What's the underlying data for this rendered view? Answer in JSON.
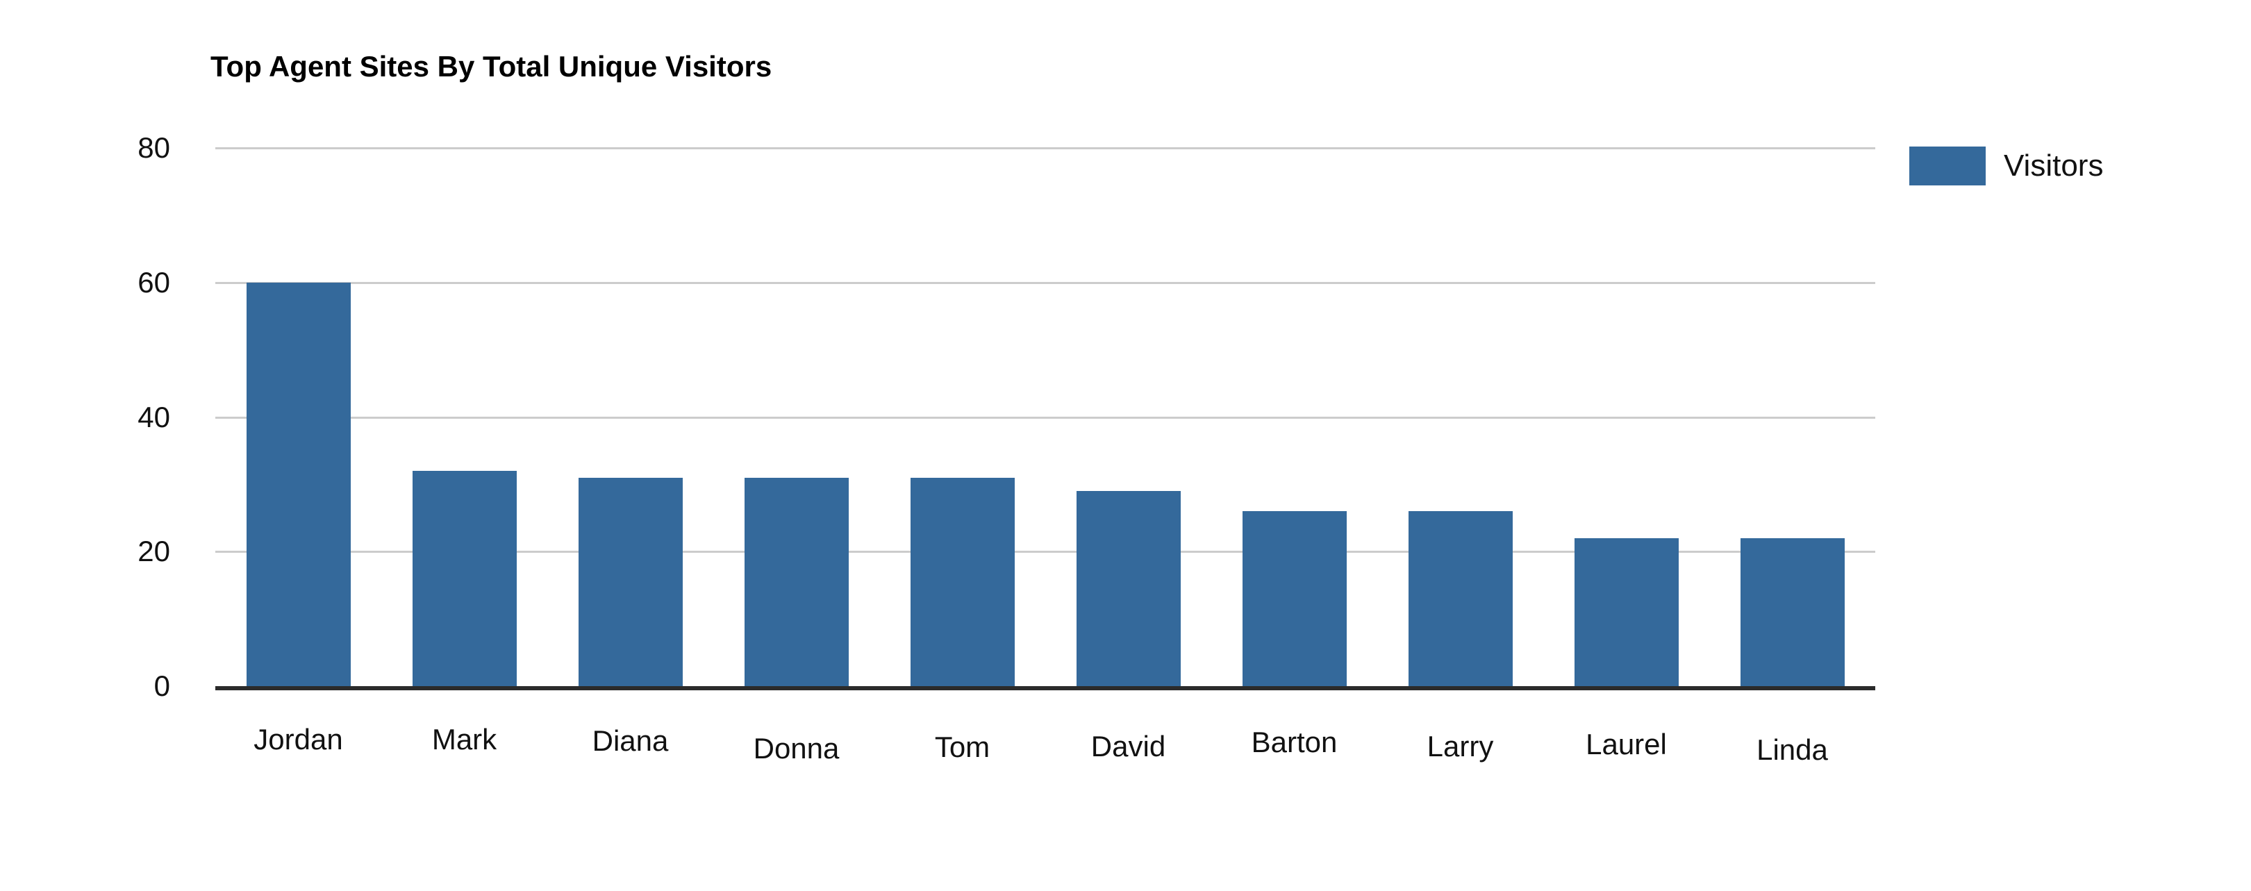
{
  "chart_data": {
    "type": "bar",
    "title": "Top Agent Sites By Total Unique Visitors",
    "categories": [
      "Jordan",
      "Mark",
      "Diana",
      "Donna",
      "Tom",
      "David",
      "Barton",
      "Larry",
      "Laurel",
      "Linda"
    ],
    "values": [
      60,
      32,
      31,
      31,
      31,
      29,
      26,
      26,
      22,
      22
    ],
    "series_name": "Visitors",
    "xlabel": "",
    "ylabel": "",
    "ylim": [
      0,
      80
    ],
    "yticks": [
      0,
      20,
      40,
      60,
      80
    ],
    "grid": true,
    "legend": {
      "label": "Visitors",
      "position": "top-right"
    },
    "colors": {
      "bar": "#34699B",
      "gridline": "#cccccc",
      "axis_line": "#2b2b2b",
      "title_text": "#000000",
      "label_text": "#111111",
      "background": "#ffffff"
    }
  }
}
